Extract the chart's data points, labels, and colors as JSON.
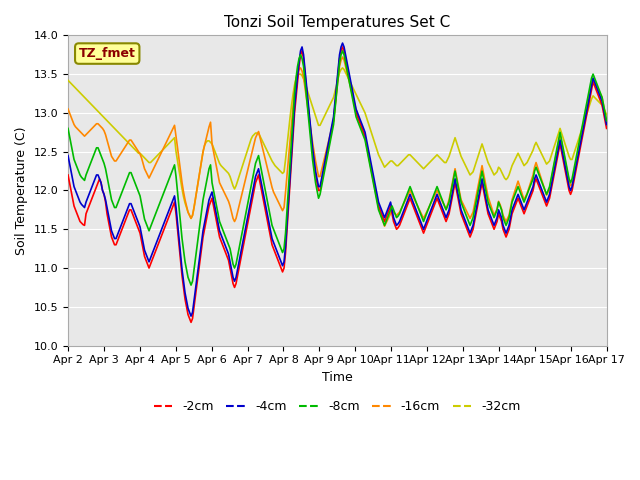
{
  "title": "Tonzi Soil Temperatures Set C",
  "xlabel": "Time",
  "ylabel": "Soil Temperature (C)",
  "ylim": [
    10.0,
    14.0
  ],
  "yticks": [
    10.0,
    10.5,
    11.0,
    11.5,
    12.0,
    12.5,
    13.0,
    13.5,
    14.0
  ],
  "xtick_labels": [
    "Apr 2",
    "Apr 3",
    "Apr 4",
    "Apr 5",
    "Apr 6",
    "Apr 7",
    "Apr 8",
    "Apr 9",
    "Apr 10",
    "Apr 11",
    "Apr 12",
    "Apr 13",
    "Apr 14",
    "Apr 15",
    "Apr 16",
    "Apr 17"
  ],
  "n_days": 15,
  "points_per_day": 24,
  "annotation_text": "TZ_fmet",
  "annotation_bg": "#ffff99",
  "annotation_text_color": "#8b0000",
  "line_colors": {
    "neg2cm": "#ff0000",
    "neg4cm": "#0000cc",
    "neg8cm": "#00bb00",
    "neg16cm": "#ff8800",
    "neg32cm": "#cccc00"
  },
  "legend_labels": [
    "-2cm",
    "-4cm",
    "-8cm",
    "-16cm",
    "-32cm"
  ],
  "plot_bg": "#e8e8e8"
}
